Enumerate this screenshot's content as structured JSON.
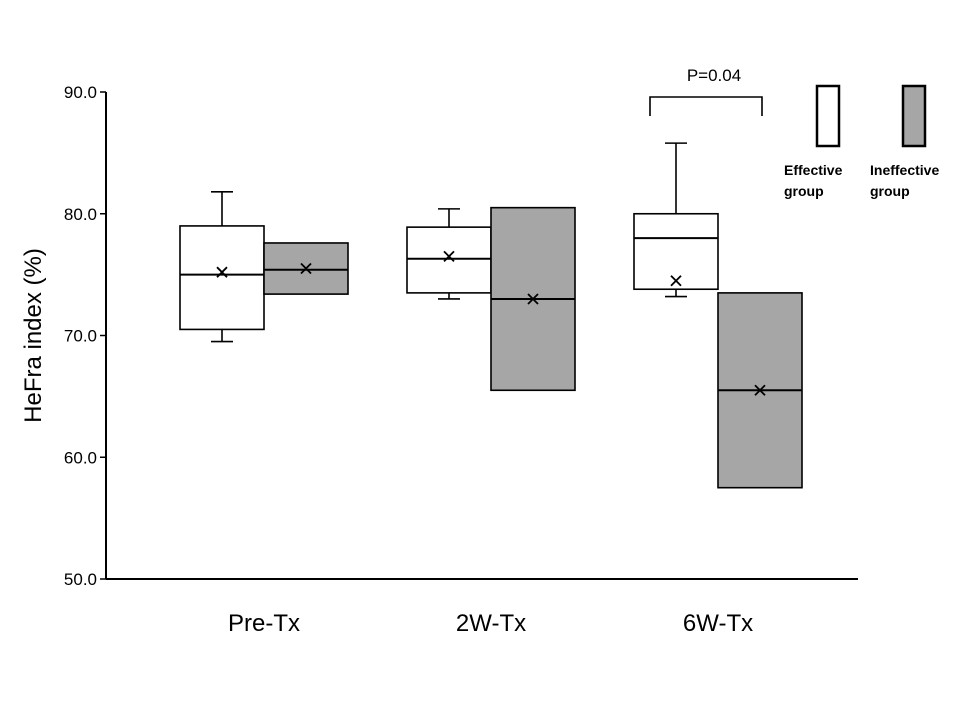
{
  "chart_data": {
    "type": "box",
    "ylabel": "HeFra index (%)",
    "xlabel": "",
    "ylim": [
      50,
      90
    ],
    "y_ticks": [
      "50.0",
      "60.0",
      "70.0",
      "80.0",
      "90.0"
    ],
    "categories": [
      "Pre-Tx",
      "2W-Tx",
      "6W-Tx"
    ],
    "grid": false,
    "legend_position": "top-right",
    "colors": {
      "effective": "#ffffff",
      "ineffective": "#a6a6a6",
      "stroke": "#000000"
    },
    "series": [
      {
        "name": "Effective group",
        "legend_lines": [
          "Effective",
          "group"
        ],
        "boxes": [
          {
            "whisker_low": 69.5,
            "q1": 70.5,
            "median": 75.0,
            "q3": 79.0,
            "whisker_high": 81.8,
            "mean": 75.2
          },
          {
            "whisker_low": 73.0,
            "q1": 73.5,
            "median": 76.3,
            "q3": 78.9,
            "whisker_high": 80.4,
            "mean": 76.5
          },
          {
            "whisker_low": 73.2,
            "q1": 73.8,
            "median": 78.0,
            "q3": 80.0,
            "whisker_high": 85.8,
            "mean": 74.5
          }
        ]
      },
      {
        "name": "Ineffective group",
        "legend_lines": [
          "Ineffective",
          "group"
        ],
        "boxes": [
          {
            "whisker_low": null,
            "q1": 73.4,
            "median": 75.4,
            "q3": 77.6,
            "whisker_high": null,
            "mean": 75.5
          },
          {
            "whisker_low": null,
            "q1": 65.5,
            "median": 73.0,
            "q3": 80.5,
            "whisker_high": null,
            "mean": 73.0
          },
          {
            "whisker_low": null,
            "q1": 57.5,
            "median": 65.5,
            "q3": 73.5,
            "whisker_high": null,
            "mean": 65.5
          }
        ]
      }
    ],
    "annotations": [
      {
        "text": "P=0.04",
        "category_index": 2
      }
    ]
  }
}
